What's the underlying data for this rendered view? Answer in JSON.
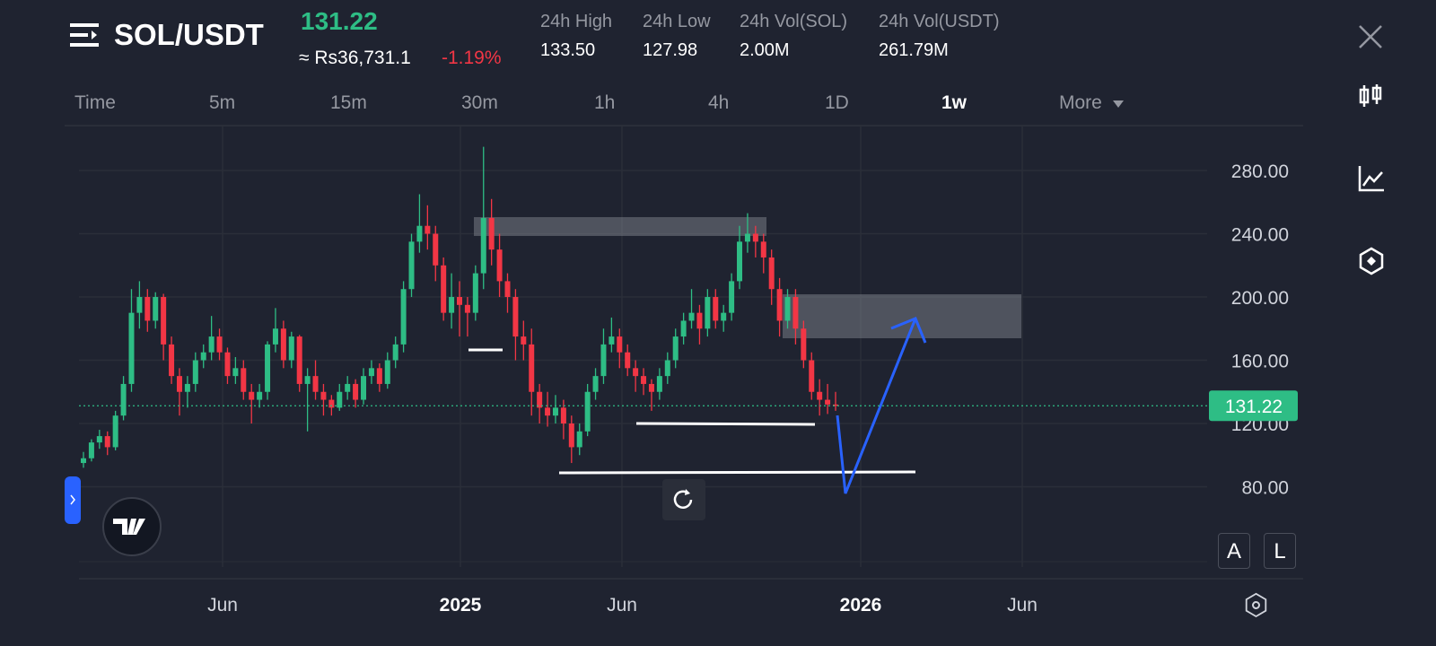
{
  "header": {
    "pair": "SOL/USDT",
    "last_price": "131.22",
    "fiat_price": "≈ Rs36,731.1",
    "change": "-1.19%",
    "stats": [
      {
        "label": "24h High",
        "value": "133.50"
      },
      {
        "label": "24h Low",
        "value": "127.98"
      },
      {
        "label": "24h Vol(SOL)",
        "value": "2.00M"
      },
      {
        "label": "24h Vol(USDT)",
        "value": "261.79M"
      }
    ]
  },
  "tabs": [
    "Time",
    "5m",
    "15m",
    "30m",
    "1h",
    "4h",
    "1D",
    "1w",
    "More"
  ],
  "active_tab": "1w",
  "scale_buttons": [
    "A",
    "L"
  ],
  "chart_data": {
    "type": "candlestick",
    "up_color": "#2ebd85",
    "down_color": "#f23645",
    "current_price": 131.22,
    "current_price_label": "131.22",
    "ylim": [
      29.2,
      308.4
    ],
    "yticks": [
      {
        "value": 80,
        "label": "80.00"
      },
      {
        "value": 120,
        "label": "120.00"
      },
      {
        "value": 160,
        "label": "160.00"
      },
      {
        "value": 200,
        "label": "200.00"
      },
      {
        "value": 240,
        "label": "240.00"
      },
      {
        "value": 280,
        "label": "280.00"
      }
    ],
    "x_labels": [
      "Jun",
      "2025",
      "Jun",
      "2026",
      "Jun"
    ],
    "candles": [
      [
        95,
        102,
        92,
        98
      ],
      [
        98,
        110,
        96,
        108
      ],
      [
        108,
        116,
        104,
        112
      ],
      [
        112,
        115,
        100,
        105
      ],
      [
        105,
        128,
        103,
        125
      ],
      [
        125,
        150,
        122,
        145
      ],
      [
        145,
        205,
        140,
        190
      ],
      [
        190,
        210,
        180,
        200
      ],
      [
        200,
        205,
        178,
        185
      ],
      [
        185,
        203,
        180,
        200
      ],
      [
        200,
        202,
        160,
        170
      ],
      [
        170,
        175,
        145,
        150
      ],
      [
        150,
        155,
        125,
        140
      ],
      [
        140,
        150,
        130,
        145
      ],
      [
        145,
        165,
        140,
        160
      ],
      [
        160,
        170,
        155,
        165
      ],
      [
        165,
        188,
        160,
        175
      ],
      [
        175,
        180,
        160,
        165
      ],
      [
        165,
        168,
        145,
        150
      ],
      [
        150,
        162,
        145,
        155
      ],
      [
        155,
        160,
        135,
        140
      ],
      [
        140,
        145,
        120,
        135
      ],
      [
        135,
        145,
        130,
        140
      ],
      [
        140,
        172,
        135,
        170
      ],
      [
        170,
        193,
        165,
        180
      ],
      [
        180,
        185,
        155,
        160
      ],
      [
        160,
        178,
        155,
        175
      ],
      [
        175,
        176,
        140,
        145
      ],
      [
        145,
        155,
        115,
        150
      ],
      [
        150,
        160,
        135,
        140
      ],
      [
        140,
        145,
        125,
        135
      ],
      [
        135,
        138,
        125,
        130
      ],
      [
        130,
        145,
        128,
        140
      ],
      [
        140,
        150,
        135,
        145
      ],
      [
        145,
        148,
        130,
        135
      ],
      [
        135,
        155,
        132,
        150
      ],
      [
        150,
        160,
        145,
        155
      ],
      [
        155,
        158,
        140,
        145
      ],
      [
        145,
        165,
        142,
        160
      ],
      [
        160,
        175,
        155,
        170
      ],
      [
        170,
        210,
        165,
        205
      ],
      [
        205,
        240,
        200,
        235
      ],
      [
        235,
        265,
        228,
        245
      ],
      [
        245,
        258,
        230,
        240
      ],
      [
        240,
        245,
        210,
        220
      ],
      [
        220,
        225,
        185,
        190
      ],
      [
        190,
        215,
        180,
        200
      ],
      [
        200,
        210,
        175,
        195
      ],
      [
        195,
        200,
        175,
        190
      ],
      [
        190,
        220,
        185,
        215
      ],
      [
        215,
        295,
        205,
        250
      ],
      [
        250,
        262,
        220,
        230
      ],
      [
        230,
        240,
        200,
        210
      ],
      [
        210,
        215,
        190,
        200
      ],
      [
        200,
        205,
        160,
        175
      ],
      [
        175,
        185,
        160,
        170
      ],
      [
        170,
        180,
        125,
        140
      ],
      [
        140,
        145,
        120,
        130
      ],
      [
        130,
        140,
        118,
        125
      ],
      [
        125,
        138,
        120,
        130
      ],
      [
        130,
        135,
        110,
        120
      ],
      [
        120,
        125,
        95,
        105
      ],
      [
        105,
        120,
        100,
        115
      ],
      [
        115,
        145,
        112,
        140
      ],
      [
        140,
        155,
        135,
        150
      ],
      [
        150,
        180,
        145,
        170
      ],
      [
        170,
        187,
        165,
        175
      ],
      [
        175,
        180,
        155,
        165
      ],
      [
        165,
        170,
        150,
        155
      ],
      [
        155,
        160,
        140,
        150
      ],
      [
        150,
        155,
        138,
        145
      ],
      [
        145,
        148,
        128,
        140
      ],
      [
        140,
        155,
        135,
        150
      ],
      [
        150,
        165,
        145,
        160
      ],
      [
        160,
        180,
        155,
        175
      ],
      [
        175,
        190,
        170,
        185
      ],
      [
        185,
        205,
        180,
        190
      ],
      [
        190,
        195,
        170,
        180
      ],
      [
        180,
        205,
        175,
        200
      ],
      [
        200,
        205,
        180,
        185
      ],
      [
        185,
        195,
        178,
        190
      ],
      [
        190,
        215,
        185,
        210
      ],
      [
        210,
        245,
        205,
        235
      ],
      [
        235,
        253,
        228,
        240
      ],
      [
        240,
        245,
        225,
        235
      ],
      [
        235,
        240,
        215,
        225
      ],
      [
        225,
        230,
        195,
        205
      ],
      [
        205,
        212,
        175,
        185
      ],
      [
        185,
        205,
        180,
        200
      ],
      [
        200,
        205,
        170,
        180
      ],
      [
        180,
        185,
        155,
        160
      ],
      [
        160,
        165,
        135,
        140
      ],
      [
        140,
        148,
        125,
        135
      ],
      [
        135,
        145,
        126,
        132
      ],
      [
        132,
        140,
        128,
        131.22
      ]
    ]
  }
}
